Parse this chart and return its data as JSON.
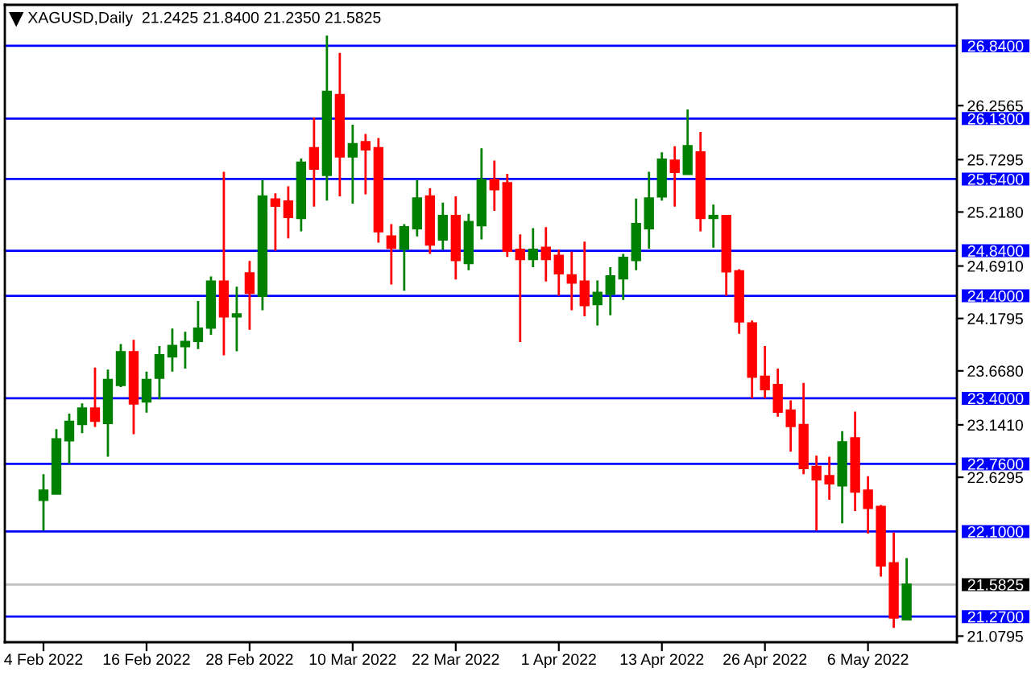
{
  "chart_data": {
    "type": "candlestick",
    "title": "XAGUSD,Daily  21.2425 21.8400 21.2350 21.5825",
    "categories": [
      "4 Feb 2022",
      null,
      null,
      null,
      null,
      null,
      null,
      null,
      "16 Feb 2022",
      null,
      null,
      null,
      null,
      null,
      null,
      null,
      "28 Feb 2022",
      null,
      null,
      null,
      null,
      null,
      null,
      null,
      "10 Mar 2022",
      null,
      null,
      null,
      null,
      null,
      null,
      null,
      "22 Mar 2022",
      null,
      null,
      null,
      null,
      null,
      null,
      null,
      "1 Apr 2022",
      null,
      null,
      null,
      null,
      null,
      null,
      null,
      "13 Apr 2022",
      null,
      null,
      null,
      null,
      null,
      null,
      null,
      "26 Apr 2022",
      null,
      null,
      null,
      null,
      null,
      null,
      null,
      "6 May 2022",
      null,
      null,
      null
    ],
    "ohlc": [
      [
        22.41,
        22.66,
        22.11,
        22.5
      ],
      [
        22.47,
        23.1,
        22.46,
        23.0
      ],
      [
        22.99,
        23.25,
        22.76,
        23.17
      ],
      [
        23.15,
        23.35,
        23.06,
        23.3
      ],
      [
        23.3,
        23.7,
        23.12,
        23.18
      ],
      [
        23.16,
        23.68,
        22.83,
        23.58
      ],
      [
        23.53,
        23.93,
        23.51,
        23.85
      ],
      [
        23.85,
        23.97,
        23.05,
        23.35
      ],
      [
        23.37,
        23.66,
        23.26,
        23.58
      ],
      [
        23.6,
        23.91,
        23.39,
        23.82
      ],
      [
        23.81,
        24.08,
        23.66,
        23.91
      ],
      [
        23.91,
        24.05,
        23.69,
        23.95
      ],
      [
        23.96,
        24.35,
        23.88,
        24.08
      ],
      [
        24.09,
        24.59,
        24.02,
        24.54
      ],
      [
        24.54,
        25.61,
        23.82,
        24.2
      ],
      [
        24.2,
        24.49,
        23.86,
        24.22
      ],
      [
        24.62,
        24.74,
        24.07,
        24.43
      ],
      [
        24.4,
        25.53,
        24.26,
        25.37
      ],
      [
        25.34,
        25.4,
        24.84,
        25.28
      ],
      [
        25.32,
        25.47,
        24.96,
        25.17
      ],
      [
        25.16,
        25.74,
        25.03,
        25.7
      ],
      [
        25.84,
        26.14,
        25.27,
        25.64
      ],
      [
        25.58,
        26.94,
        25.33,
        26.39
      ],
      [
        26.36,
        26.77,
        25.37,
        25.76
      ],
      [
        25.76,
        26.07,
        25.3,
        25.88
      ],
      [
        25.9,
        25.98,
        25.39,
        25.83
      ],
      [
        25.84,
        25.94,
        24.92,
        25.03
      ],
      [
        24.98,
        25.1,
        24.51,
        24.87
      ],
      [
        24.86,
        25.1,
        24.45,
        25.07
      ],
      [
        25.06,
        25.53,
        24.98,
        25.35
      ],
      [
        25.37,
        25.45,
        24.81,
        24.9
      ],
      [
        24.95,
        25.31,
        24.85,
        25.18
      ],
      [
        25.18,
        25.37,
        24.56,
        24.75
      ],
      [
        24.72,
        25.2,
        24.65,
        25.12
      ],
      [
        25.09,
        25.84,
        24.95,
        25.53
      ],
      [
        25.53,
        25.72,
        25.23,
        25.44
      ],
      [
        25.5,
        25.59,
        24.78,
        24.84
      ],
      [
        24.85,
        25.0,
        23.95,
        24.76
      ],
      [
        24.76,
        25.06,
        24.68,
        24.85
      ],
      [
        24.87,
        25.07,
        24.54,
        24.76
      ],
      [
        24.79,
        24.85,
        24.4,
        24.62
      ],
      [
        24.6,
        24.83,
        24.26,
        24.53
      ],
      [
        24.54,
        24.93,
        24.2,
        24.31
      ],
      [
        24.32,
        24.55,
        24.11,
        24.43
      ],
      [
        24.42,
        24.68,
        24.21,
        24.59
      ],
      [
        24.57,
        24.81,
        24.36,
        24.77
      ],
      [
        24.75,
        25.35,
        24.65,
        25.1
      ],
      [
        25.06,
        25.61,
        24.86,
        25.35
      ],
      [
        25.37,
        25.8,
        25.33,
        25.73
      ],
      [
        25.72,
        25.86,
        25.27,
        25.61
      ],
      [
        25.59,
        26.22,
        25.58,
        25.86
      ],
      [
        25.8,
        26.0,
        25.03,
        25.16
      ],
      [
        25.16,
        25.29,
        24.87,
        25.18
      ],
      [
        25.18,
        25.18,
        24.4,
        24.64
      ],
      [
        24.64,
        24.66,
        24.03,
        24.15
      ],
      [
        24.13,
        24.16,
        23.4,
        23.61
      ],
      [
        23.61,
        23.91,
        23.4,
        23.49
      ],
      [
        23.53,
        23.69,
        23.22,
        23.27
      ],
      [
        23.28,
        23.38,
        22.88,
        23.13
      ],
      [
        23.14,
        23.55,
        22.66,
        22.72
      ],
      [
        22.73,
        22.84,
        22.11,
        22.61
      ],
      [
        22.64,
        22.83,
        22.41,
        22.57
      ],
      [
        22.55,
        23.08,
        22.18,
        22.97
      ],
      [
        23.01,
        23.27,
        22.3,
        22.49
      ],
      [
        22.5,
        22.64,
        22.08,
        22.33
      ],
      [
        22.34,
        22.36,
        21.66,
        21.77
      ],
      [
        21.79,
        22.09,
        21.16,
        21.26
      ],
      [
        21.2425,
        21.84,
        21.235,
        21.5825
      ]
    ],
    "colors": [
      "#008000",
      "#008000",
      "#008000",
      "#008000",
      "#ff0000",
      "#008000",
      "#008000",
      "#ff0000",
      "#008000",
      "#008000",
      "#008000",
      "#008000",
      "#008000",
      "#008000",
      "#ff0000",
      "#008000",
      "#ff0000",
      "#008000",
      "#ff0000",
      "#ff0000",
      "#008000",
      "#ff0000",
      "#008000",
      "#ff0000",
      "#008000",
      "#ff0000",
      "#ff0000",
      "#ff0000",
      "#008000",
      "#008000",
      "#ff0000",
      "#008000",
      "#ff0000",
      "#008000",
      "#008000",
      "#ff0000",
      "#ff0000",
      "#ff0000",
      "#008000",
      "#ff0000",
      "#ff0000",
      "#ff0000",
      "#ff0000",
      "#008000",
      "#008000",
      "#008000",
      "#008000",
      "#008000",
      "#008000",
      "#ff0000",
      "#008000",
      "#ff0000",
      "#008000",
      "#ff0000",
      "#ff0000",
      "#ff0000",
      "#ff0000",
      "#ff0000",
      "#ff0000",
      "#ff0000",
      "#ff0000",
      "#ff0000",
      "#008000",
      "#ff0000",
      "#ff0000",
      "#ff0000",
      "#ff0000",
      "#008000"
    ],
    "ylim": [
      21.02,
      27.24
    ],
    "yticks": [
      {
        "value": 26.2565,
        "label": "26.2565"
      },
      {
        "value": 25.7295,
        "label": "25.7295"
      },
      {
        "value": 25.218,
        "label": "25.2180"
      },
      {
        "value": 24.691,
        "label": "24.6910"
      },
      {
        "value": 24.1795,
        "label": "24.1795"
      },
      {
        "value": 23.668,
        "label": "23.6680"
      },
      {
        "value": 23.141,
        "label": "23.1410"
      },
      {
        "value": 22.6295,
        "label": "22.6295"
      },
      {
        "value": 21.0795,
        "label": "21.0795"
      }
    ],
    "ref_lines": [
      {
        "axis": "y",
        "value": 26.84,
        "label": "26.8400",
        "color": "#0000ff"
      },
      {
        "axis": "y",
        "value": 26.13,
        "label": "26.1300",
        "color": "#0000ff"
      },
      {
        "axis": "y",
        "value": 25.54,
        "label": "25.5400",
        "color": "#0000ff"
      },
      {
        "axis": "y",
        "value": 24.84,
        "label": "24.8400",
        "color": "#0000ff"
      },
      {
        "axis": "y",
        "value": 24.4,
        "label": "24.4000",
        "color": "#0000ff"
      },
      {
        "axis": "y",
        "value": 23.4,
        "label": "23.4000",
        "color": "#0000ff"
      },
      {
        "axis": "y",
        "value": 22.76,
        "label": "22.7600",
        "color": "#0000ff"
      },
      {
        "axis": "y",
        "value": 22.1,
        "label": "22.1000",
        "color": "#0000ff"
      },
      {
        "axis": "y",
        "value": 21.5825,
        "label": "21.5825",
        "color": "#c0c0c0"
      },
      {
        "axis": "y",
        "value": 21.27,
        "label": "21.2700",
        "color": "#0000ff"
      }
    ],
    "grid": false,
    "legend": false
  }
}
